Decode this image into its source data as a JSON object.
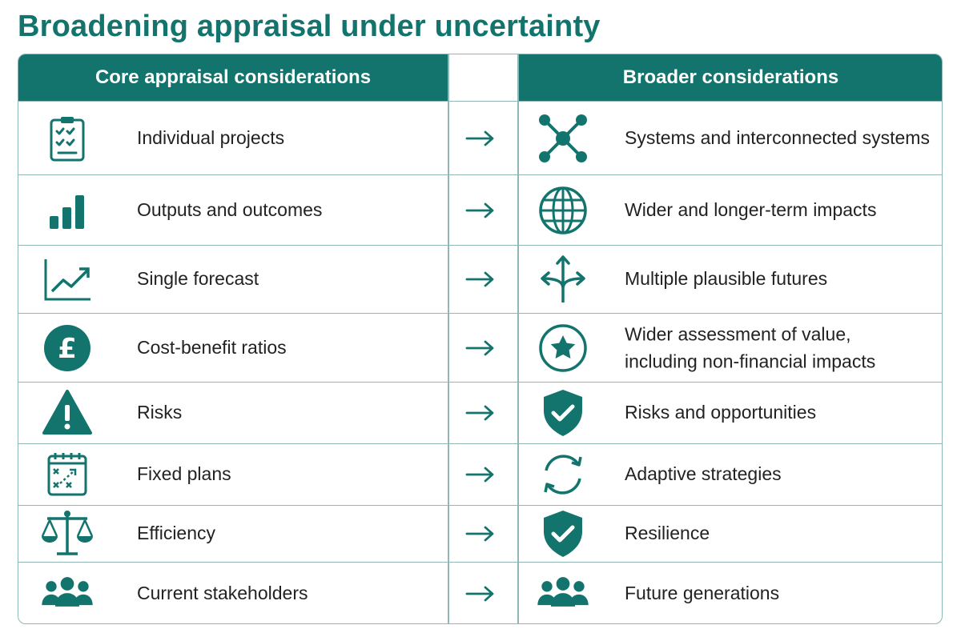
{
  "title": "Broadening appraisal under uncertainty",
  "headers": {
    "core": "Core appraisal considerations",
    "broader": "Broader considerations"
  },
  "accent_color": "#13736d",
  "rows": [
    {
      "core_icon": "checklist-icon",
      "core": "Individual projects",
      "broader_icon": "network-icon",
      "broader": "Systems and interconnected systems"
    },
    {
      "core_icon": "bar-chart-icon",
      "core": "Outputs and outcomes",
      "broader_icon": "globe-icon",
      "broader": "Wider and longer-term impacts"
    },
    {
      "core_icon": "line-chart-icon",
      "core": "Single forecast",
      "broader_icon": "diverging-arrows-icon",
      "broader": "Multiple plausible futures"
    },
    {
      "core_icon": "pound-coin-icon",
      "core": "Cost-benefit ratios",
      "broader_icon": "star-circle-icon",
      "broader": "Wider assessment of value,\nincluding non-financial impacts"
    },
    {
      "core_icon": "warning-triangle-icon",
      "core": "Risks",
      "broader_icon": "shield-check-icon",
      "broader": "Risks and opportunities"
    },
    {
      "core_icon": "plan-calendar-icon",
      "core": "Fixed plans",
      "broader_icon": "cycle-arrows-icon",
      "broader": "Adaptive strategies"
    },
    {
      "core_icon": "scales-icon",
      "core": "Efficiency",
      "broader_icon": "shield-check-icon",
      "broader": "Resilience"
    },
    {
      "core_icon": "people-group-icon",
      "core": "Current stakeholders",
      "broader_icon": "people-group-icon",
      "broader": "Future generations"
    }
  ]
}
